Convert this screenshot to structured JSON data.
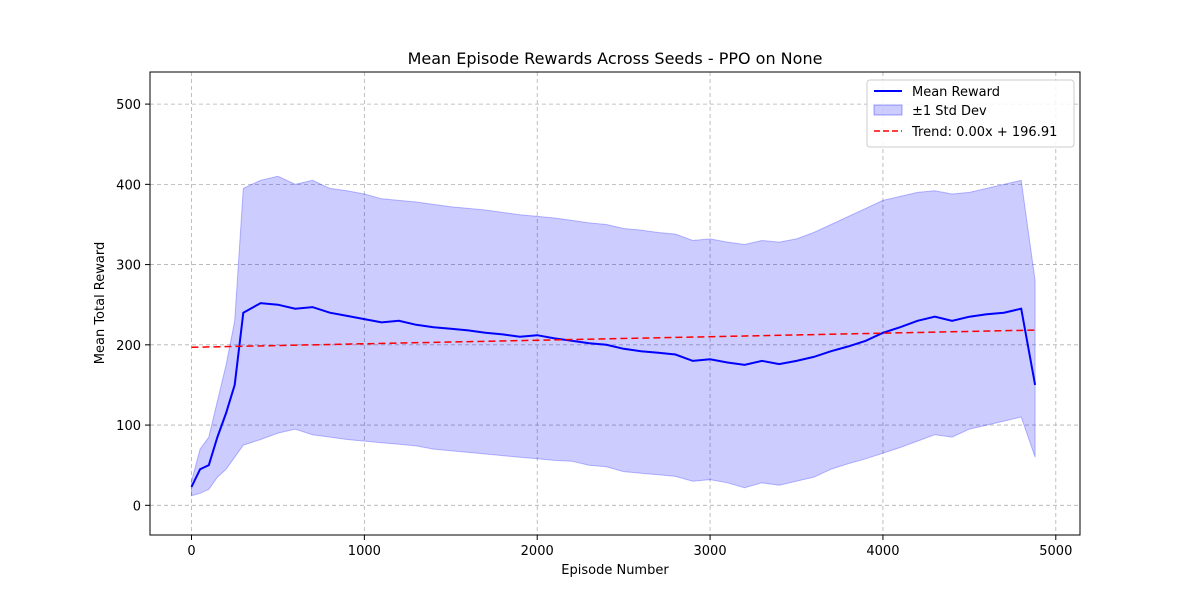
{
  "chart_data": {
    "type": "line",
    "title": "Mean Episode Rewards Across Seeds - PPO on None",
    "xlabel": "Episode Number",
    "ylabel": "Mean Total Reward",
    "xlim": [
      -240,
      5140
    ],
    "ylim": [
      -37,
      540
    ],
    "xticks": [
      0,
      1000,
      2000,
      3000,
      4000,
      5000
    ],
    "yticks": [
      0,
      100,
      200,
      300,
      400,
      500
    ],
    "xtick_labels": [
      "0",
      "1000",
      "2000",
      "3000",
      "4000",
      "5000"
    ],
    "ytick_labels": [
      "0",
      "100",
      "200",
      "300",
      "400",
      "500"
    ],
    "grid": true,
    "legend_position": "top-right",
    "legend": [
      "Mean Reward",
      "±1 Std Dev",
      "Trend: 0.00x + 196.91"
    ],
    "x": [
      0,
      50,
      100,
      150,
      200,
      250,
      300,
      400,
      500,
      600,
      700,
      800,
      900,
      1000,
      1100,
      1200,
      1300,
      1400,
      1500,
      1600,
      1700,
      1800,
      1900,
      2000,
      2100,
      2200,
      2300,
      2400,
      2500,
      2600,
      2700,
      2800,
      2900,
      3000,
      3100,
      3200,
      3300,
      3400,
      3500,
      3600,
      3700,
      3800,
      3900,
      4000,
      4100,
      4200,
      4300,
      4400,
      4500,
      4600,
      4700,
      4800,
      4880
    ],
    "series": [
      {
        "name": "Mean Reward",
        "color": "#0000ff",
        "values": [
          23,
          45,
          50,
          85,
          115,
          150,
          240,
          252,
          250,
          245,
          247,
          240,
          236,
          232,
          228,
          230,
          225,
          222,
          220,
          218,
          215,
          213,
          210,
          212,
          208,
          205,
          202,
          200,
          195,
          192,
          190,
          188,
          180,
          182,
          178,
          175,
          180,
          176,
          180,
          185,
          192,
          198,
          205,
          215,
          222,
          230,
          235,
          230,
          235,
          238,
          240,
          245,
          150
        ]
      },
      {
        "name": "±1 Std Dev",
        "color": "#0000ff",
        "fill_opacity": 0.2,
        "lower": [
          12,
          15,
          20,
          35,
          45,
          60,
          75,
          82,
          90,
          95,
          88,
          85,
          82,
          80,
          78,
          76,
          74,
          70,
          68,
          66,
          64,
          62,
          60,
          58,
          56,
          55,
          50,
          48,
          42,
          40,
          38,
          36,
          30,
          32,
          28,
          22,
          28,
          25,
          30,
          35,
          45,
          52,
          58,
          65,
          72,
          80,
          88,
          85,
          95,
          100,
          105,
          110,
          60
        ],
        "upper": [
          30,
          70,
          85,
          130,
          175,
          230,
          395,
          405,
          410,
          400,
          405,
          395,
          392,
          388,
          382,
          380,
          378,
          375,
          372,
          370,
          368,
          365,
          362,
          360,
          358,
          355,
          352,
          350,
          345,
          343,
          340,
          338,
          330,
          332,
          328,
          325,
          330,
          328,
          332,
          340,
          350,
          360,
          370,
          380,
          385,
          390,
          392,
          388,
          390,
          395,
          400,
          405,
          280
        ]
      },
      {
        "name": "Trend: 0.00x + 196.91",
        "color": "#ff0000",
        "style": "dashed",
        "slope": 0.0044,
        "intercept": 196.91
      }
    ]
  }
}
